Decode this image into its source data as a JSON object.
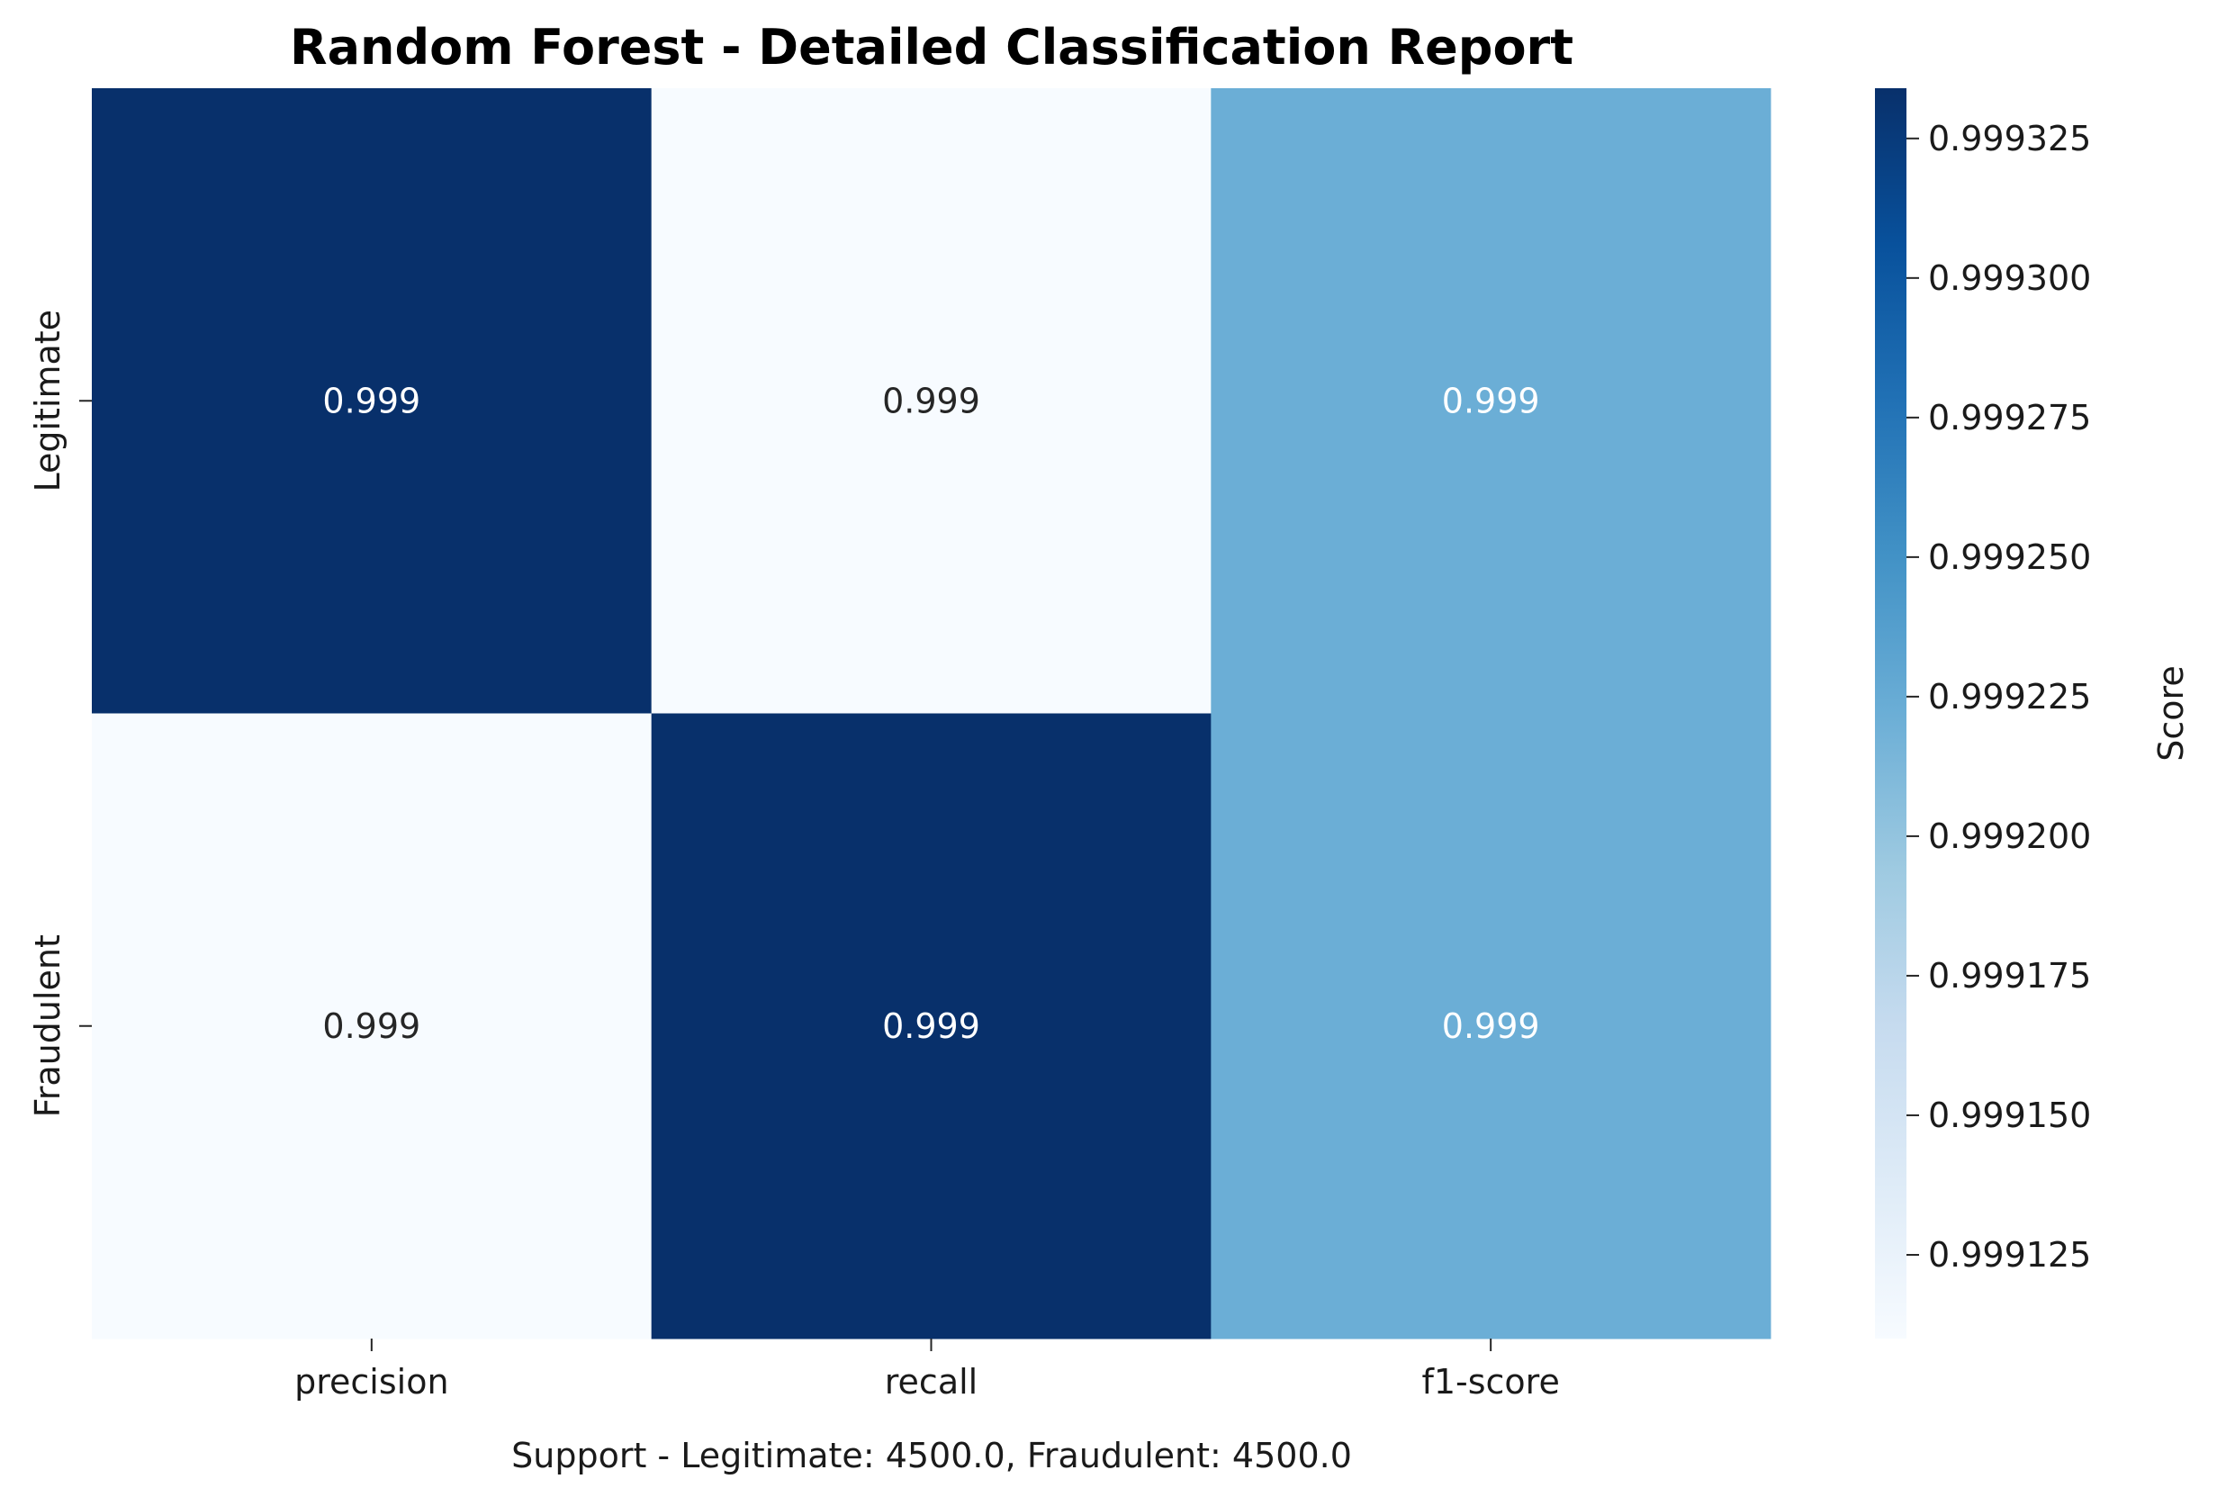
{
  "chart_data": {
    "type": "heatmap",
    "title": "Random Forest - Detailed Classification Report",
    "columns": [
      "precision",
      "recall",
      "f1-score"
    ],
    "rows": [
      "Legitimate",
      "Fraudulent"
    ],
    "values": [
      [
        0.999334,
        0.99911,
        0.999222
      ],
      [
        0.99911,
        0.999334,
        0.999222
      ]
    ],
    "annotations": [
      [
        "0.999",
        "0.999",
        "0.999"
      ],
      [
        "0.999",
        "0.999",
        "0.999"
      ]
    ],
    "colormap": "Blues",
    "colorbar": {
      "label": "Score",
      "vmin": 0.99911,
      "vmax": 0.999334,
      "ticks": [
        0.999125,
        0.99915,
        0.999175,
        0.9992,
        0.999225,
        0.99925,
        0.999275,
        0.9993,
        0.999325
      ],
      "tick_labels": [
        "0.999125",
        "0.999150",
        "0.999175",
        "0.999200",
        "0.999225",
        "0.999250",
        "0.999275",
        "0.999300",
        "0.999325"
      ]
    },
    "footer": "Support - Legitimate: 4500.0, Fraudulent: 4500.0",
    "grid": false
  },
  "colors": {
    "text_dark": "#262626",
    "text_light": "#ffffff",
    "blues": [
      "#f7fbff",
      "#deebf7",
      "#c6dbef",
      "#9ecae1",
      "#6baed6",
      "#4292c6",
      "#2171b5",
      "#08519c",
      "#08306b"
    ]
  }
}
